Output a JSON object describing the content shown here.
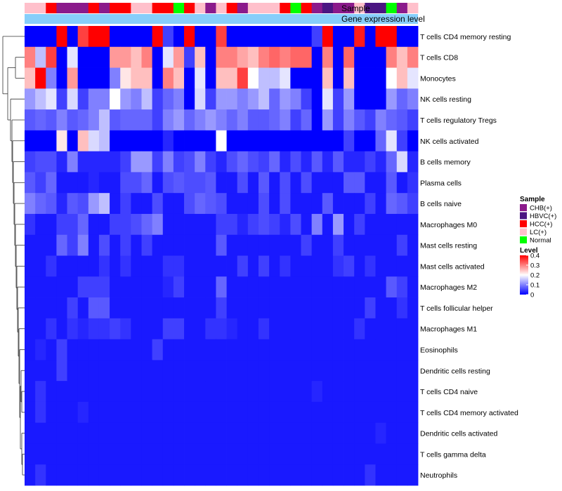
{
  "chart_data": {
    "type": "heatmap",
    "annotation_labels": {
      "sample": "Sample",
      "gene": "Gene expression level"
    },
    "sample_colors": {
      "CHB(+)": "#8B1A8B",
      "HBVC(+)": "#4B1682",
      "HCC(+)": "#FF0000",
      "LC(+)": "#FFC0CB",
      "Normal": "#00FF00"
    },
    "gene_expression_color": "#87CEFA",
    "samples": [
      "LC(+)",
      "LC(+)",
      "HCC(+)",
      "CHB(+)",
      "CHB(+)",
      "CHB(+)",
      "HCC(+)",
      "CHB(+)",
      "HCC(+)",
      "HCC(+)",
      "LC(+)",
      "LC(+)",
      "HCC(+)",
      "HCC(+)",
      "Normal",
      "HCC(+)",
      "LC(+)",
      "CHB(+)",
      "LC(+)",
      "HCC(+)",
      "CHB(+)",
      "LC(+)",
      "LC(+)",
      "LC(+)",
      "HCC(+)",
      "Normal",
      "HCC(+)",
      "CHB(+)",
      "HBVC(+)",
      "CHB(+)",
      "CHB(+)",
      "LC(+)",
      "HBVC(+)",
      "HBVC(+)",
      "Normal",
      "CHB(+)",
      "LC(+)"
    ],
    "rows": [
      "T cells CD4 memory resting",
      "T cells CD8",
      "Monocytes",
      "NK cells resting",
      "T cells regulatory  Tregs",
      "NK cells activated",
      "B cells memory",
      "Plasma cells",
      "B cells naive",
      "Macrophages M0",
      "Mast cells resting",
      "Mast cells activated",
      "Macrophages M2",
      "T cells follicular helper",
      "Macrophages M1",
      "Eosinophils",
      "Dendritic cells resting",
      "T cells CD4 naive",
      "T cells CD4 memory activated",
      "Dendritic cells activated",
      "T cells gamma delta",
      "Neutrophils"
    ],
    "values": [
      [
        0.0,
        0.0,
        0.0,
        0.4,
        0.0,
        0.35,
        0.4,
        0.4,
        0.0,
        0.0,
        0.0,
        0.0,
        0.4,
        0.05,
        0.0,
        0.4,
        0.0,
        0.0,
        0.35,
        0.0,
        0.0,
        0.0,
        0.0,
        0.0,
        0.0,
        0.0,
        0.0,
        0.05,
        0.4,
        0.0,
        0.0,
        0.38,
        0.0,
        0.4,
        0.4,
        0.0,
        0.0
      ],
      [
        0.3,
        0.15,
        0.35,
        0.0,
        0.18,
        0.0,
        0.0,
        0.0,
        0.28,
        0.28,
        0.25,
        0.3,
        0.0,
        0.18,
        0.28,
        0.05,
        0.25,
        0.0,
        0.3,
        0.3,
        0.27,
        0.25,
        0.3,
        0.32,
        0.3,
        0.32,
        0.32,
        0.0,
        0.3,
        0.0,
        0.32,
        0.0,
        0.0,
        0.0,
        0.3,
        0.25,
        0.3
      ],
      [
        0.25,
        0.4,
        0.1,
        0.0,
        0.28,
        0.0,
        0.0,
        0.0,
        0.1,
        0.22,
        0.25,
        0.25,
        0.0,
        0.3,
        0.25,
        0.0,
        0.18,
        0.0,
        0.25,
        0.25,
        0.35,
        0.2,
        0.15,
        0.15,
        0.18,
        0.0,
        0.0,
        0.0,
        0.25,
        0.0,
        0.25,
        0.0,
        0.0,
        0.0,
        0.2,
        0.25,
        0.18
      ],
      [
        0.12,
        0.15,
        0.18,
        0.05,
        0.17,
        0.05,
        0.1,
        0.1,
        0.2,
        0.12,
        0.1,
        0.15,
        0.05,
        0.08,
        0.1,
        0.0,
        0.17,
        0.05,
        0.12,
        0.12,
        0.1,
        0.12,
        0.15,
        0.08,
        0.12,
        0.1,
        0.05,
        0.0,
        0.18,
        0.05,
        0.12,
        0.0,
        0.0,
        0.0,
        0.12,
        0.08,
        0.1
      ],
      [
        0.07,
        0.08,
        0.07,
        0.1,
        0.07,
        0.08,
        0.1,
        0.15,
        0.07,
        0.08,
        0.08,
        0.08,
        0.05,
        0.1,
        0.12,
        0.08,
        0.1,
        0.12,
        0.1,
        0.08,
        0.1,
        0.07,
        0.07,
        0.08,
        0.1,
        0.05,
        0.08,
        0.0,
        0.12,
        0.05,
        0.1,
        0.07,
        0.05,
        0.1,
        0.08,
        0.07,
        0.05
      ],
      [
        0.0,
        0.0,
        0.0,
        0.22,
        0.0,
        0.25,
        0.17,
        0.15,
        0.0,
        0.0,
        0.0,
        0.0,
        0.0,
        0.03,
        0.0,
        0.0,
        0.0,
        0.0,
        0.2,
        0.0,
        0.0,
        0.0,
        0.0,
        0.0,
        0.0,
        0.0,
        0.0,
        0.0,
        0.0,
        0.0,
        0.05,
        0.0,
        0.0,
        0.08,
        0.18,
        0.05,
        0.0
      ],
      [
        0.05,
        0.06,
        0.06,
        0.03,
        0.1,
        0.03,
        0.03,
        0.03,
        0.03,
        0.05,
        0.12,
        0.12,
        0.05,
        0.1,
        0.05,
        0.06,
        0.1,
        0.05,
        0.03,
        0.06,
        0.08,
        0.06,
        0.05,
        0.08,
        0.03,
        0.06,
        0.03,
        0.07,
        0.03,
        0.07,
        0.03,
        0.03,
        0.05,
        0.03,
        0.08,
        0.17,
        0.03
      ],
      [
        0.07,
        0.05,
        0.08,
        0.02,
        0.02,
        0.02,
        0.03,
        0.02,
        0.02,
        0.06,
        0.06,
        0.08,
        0.02,
        0.06,
        0.07,
        0.06,
        0.06,
        0.07,
        0.02,
        0.02,
        0.06,
        0.02,
        0.07,
        0.02,
        0.06,
        0.02,
        0.06,
        0.02,
        0.02,
        0.02,
        0.07,
        0.07,
        0.02,
        0.02,
        0.07,
        0.02,
        0.04
      ],
      [
        0.1,
        0.08,
        0.07,
        0.03,
        0.07,
        0.06,
        0.12,
        0.15,
        0.02,
        0.05,
        0.02,
        0.02,
        0.06,
        0.02,
        0.02,
        0.06,
        0.08,
        0.07,
        0.06,
        0.02,
        0.02,
        0.02,
        0.06,
        0.02,
        0.06,
        0.02,
        0.02,
        0.02,
        0.07,
        0.02,
        0.02,
        0.02,
        0.05,
        0.02,
        0.08,
        0.07,
        0.05
      ],
      [
        0.04,
        0.02,
        0.02,
        0.05,
        0.05,
        0.08,
        0.02,
        0.02,
        0.05,
        0.05,
        0.06,
        0.08,
        0.1,
        0.02,
        0.02,
        0.02,
        0.02,
        0.02,
        0.05,
        0.05,
        0.03,
        0.05,
        0.06,
        0.05,
        0.03,
        0.06,
        0.02,
        0.1,
        0.02,
        0.12,
        0.02,
        0.05,
        0.02,
        0.02,
        0.02,
        0.02,
        0.02
      ],
      [
        0.02,
        0.02,
        0.02,
        0.08,
        0.05,
        0.1,
        0.02,
        0.06,
        0.02,
        0.05,
        0.02,
        0.05,
        0.02,
        0.02,
        0.02,
        0.02,
        0.02,
        0.02,
        0.07,
        0.02,
        0.02,
        0.02,
        0.02,
        0.02,
        0.02,
        0.02,
        0.05,
        0.02,
        0.02,
        0.05,
        0.02,
        0.02,
        0.02,
        0.02,
        0.02,
        0.05,
        0.02
      ],
      [
        0.02,
        0.02,
        0.04,
        0.02,
        0.02,
        0.02,
        0.02,
        0.04,
        0.02,
        0.04,
        0.02,
        0.02,
        0.02,
        0.04,
        0.04,
        0.02,
        0.02,
        0.02,
        0.02,
        0.02,
        0.05,
        0.02,
        0.05,
        0.02,
        0.04,
        0.02,
        0.02,
        0.02,
        0.02,
        0.04,
        0.05,
        0.02,
        0.04,
        0.02,
        0.02,
        0.02,
        0.02
      ],
      [
        0.02,
        0.02,
        0.02,
        0.02,
        0.02,
        0.05,
        0.05,
        0.05,
        0.02,
        0.02,
        0.02,
        0.02,
        0.02,
        0.03,
        0.05,
        0.02,
        0.02,
        0.02,
        0.08,
        0.02,
        0.02,
        0.02,
        0.02,
        0.02,
        0.02,
        0.02,
        0.02,
        0.02,
        0.02,
        0.02,
        0.02,
        0.02,
        0.02,
        0.02,
        0.07,
        0.05,
        0.02
      ],
      [
        0.02,
        0.02,
        0.02,
        0.02,
        0.05,
        0.02,
        0.07,
        0.07,
        0.02,
        0.02,
        0.02,
        0.02,
        0.02,
        0.02,
        0.02,
        0.02,
        0.02,
        0.02,
        0.05,
        0.02,
        0.02,
        0.02,
        0.02,
        0.02,
        0.02,
        0.02,
        0.02,
        0.02,
        0.02,
        0.02,
        0.02,
        0.02,
        0.05,
        0.02,
        0.02,
        0.04,
        0.02
      ],
      [
        0.02,
        0.02,
        0.04,
        0.02,
        0.04,
        0.03,
        0.04,
        0.04,
        0.05,
        0.04,
        0.02,
        0.02,
        0.02,
        0.05,
        0.05,
        0.02,
        0.02,
        0.04,
        0.04,
        0.03,
        0.02,
        0.02,
        0.04,
        0.02,
        0.02,
        0.02,
        0.02,
        0.02,
        0.02,
        0.02,
        0.02,
        0.04,
        0.02,
        0.02,
        0.02,
        0.02,
        0.02
      ],
      [
        0.02,
        0.03,
        0.02,
        0.05,
        0.02,
        0.02,
        0.02,
        0.02,
        0.02,
        0.02,
        0.02,
        0.02,
        0.05,
        0.02,
        0.02,
        0.02,
        0.02,
        0.02,
        0.02,
        0.02,
        0.02,
        0.02,
        0.02,
        0.02,
        0.02,
        0.02,
        0.02,
        0.02,
        0.02,
        0.02,
        0.02,
        0.02,
        0.02,
        0.02,
        0.02,
        0.02,
        0.02
      ],
      [
        0.02,
        0.02,
        0.02,
        0.05,
        0.02,
        0.02,
        0.02,
        0.02,
        0.02,
        0.02,
        0.02,
        0.02,
        0.02,
        0.02,
        0.02,
        0.02,
        0.02,
        0.02,
        0.02,
        0.02,
        0.02,
        0.02,
        0.02,
        0.02,
        0.02,
        0.02,
        0.02,
        0.02,
        0.02,
        0.02,
        0.02,
        0.02,
        0.02,
        0.02,
        0.02,
        0.02,
        0.02
      ],
      [
        0.02,
        0.04,
        0.02,
        0.02,
        0.02,
        0.02,
        0.02,
        0.02,
        0.02,
        0.02,
        0.02,
        0.02,
        0.02,
        0.02,
        0.02,
        0.02,
        0.02,
        0.02,
        0.02,
        0.02,
        0.02,
        0.02,
        0.02,
        0.02,
        0.02,
        0.02,
        0.02,
        0.03,
        0.02,
        0.02,
        0.02,
        0.02,
        0.02,
        0.02,
        0.02,
        0.02,
        0.02
      ],
      [
        0.02,
        0.04,
        0.02,
        0.02,
        0.02,
        0.03,
        0.02,
        0.02,
        0.02,
        0.02,
        0.02,
        0.02,
        0.02,
        0.02,
        0.02,
        0.02,
        0.02,
        0.02,
        0.02,
        0.02,
        0.02,
        0.02,
        0.02,
        0.02,
        0.02,
        0.02,
        0.02,
        0.02,
        0.02,
        0.02,
        0.02,
        0.02,
        0.02,
        0.02,
        0.02,
        0.02,
        0.02
      ],
      [
        0.02,
        0.02,
        0.02,
        0.02,
        0.02,
        0.02,
        0.02,
        0.02,
        0.02,
        0.02,
        0.02,
        0.02,
        0.02,
        0.02,
        0.02,
        0.02,
        0.02,
        0.02,
        0.02,
        0.02,
        0.02,
        0.02,
        0.02,
        0.02,
        0.02,
        0.02,
        0.02,
        0.02,
        0.02,
        0.02,
        0.02,
        0.02,
        0.02,
        0.03,
        0.02,
        0.02,
        0.02
      ],
      [
        0.02,
        0.02,
        0.02,
        0.02,
        0.02,
        0.02,
        0.02,
        0.02,
        0.02,
        0.02,
        0.02,
        0.02,
        0.02,
        0.02,
        0.02,
        0.02,
        0.02,
        0.02,
        0.02,
        0.02,
        0.02,
        0.02,
        0.02,
        0.02,
        0.02,
        0.02,
        0.02,
        0.02,
        0.02,
        0.02,
        0.02,
        0.02,
        0.02,
        0.02,
        0.02,
        0.02,
        0.02
      ],
      [
        0.02,
        0.04,
        0.02,
        0.02,
        0.02,
        0.02,
        0.02,
        0.02,
        0.02,
        0.02,
        0.02,
        0.02,
        0.02,
        0.02,
        0.02,
        0.02,
        0.02,
        0.02,
        0.02,
        0.02,
        0.02,
        0.02,
        0.02,
        0.02,
        0.02,
        0.02,
        0.02,
        0.02,
        0.02,
        0.02,
        0.02,
        0.02,
        0.04,
        0.02,
        0.02,
        0.02,
        0.02
      ]
    ],
    "color_scale": {
      "min": 0,
      "max": 0.4,
      "low_color": "#0000FF",
      "mid_color": "#FFFFFF",
      "high_color": "#FF0000",
      "mid_value": 0.2
    },
    "legend": {
      "sample_title": "Sample",
      "sample_items": [
        "CHB(+)",
        "HBVC(+)",
        "HCC(+)",
        "LC(+)",
        "Normal"
      ],
      "level_title": "Level",
      "level_ticks": [
        "0.4",
        "0.3",
        "0.2",
        "0.1",
        "0"
      ]
    }
  }
}
